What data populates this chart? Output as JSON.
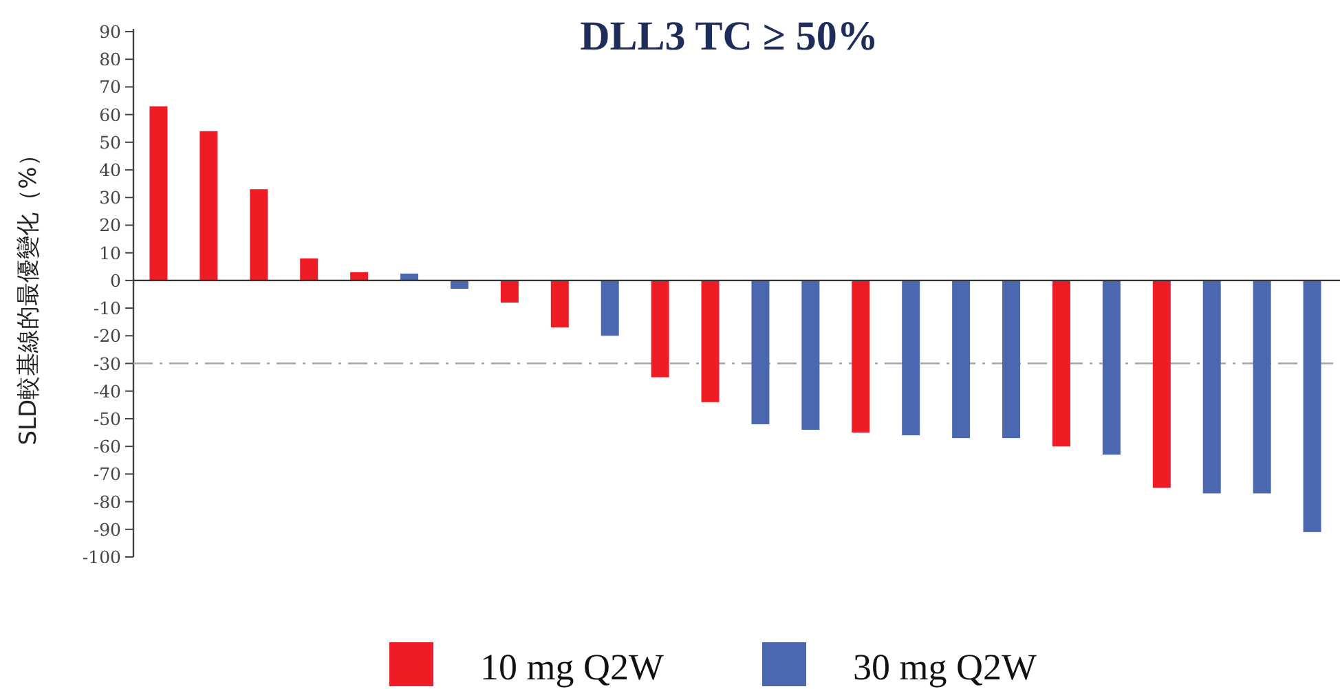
{
  "chart_data": {
    "type": "bar",
    "title": "DLL3 TC ≥ 50%",
    "ylabel": "SLD較基線的最優變化（%）",
    "categories": [
      null,
      null,
      null,
      null,
      null,
      null,
      null,
      null,
      null,
      null,
      null,
      null,
      null,
      null,
      null,
      null,
      null,
      null,
      null,
      null,
      null,
      null,
      null,
      null
    ],
    "series": [
      {
        "name": "10 mg Q2W",
        "color": "#ee1c25",
        "values": [
          63,
          54,
          33,
          8,
          3,
          null,
          null,
          -8,
          -17,
          null,
          -35,
          -44,
          null,
          null,
          -55,
          null,
          null,
          null,
          -60,
          null,
          -75,
          null,
          null,
          null
        ]
      },
      {
        "name": "30 mg Q2W",
        "color": "#4a67b0",
        "values": [
          null,
          null,
          null,
          null,
          null,
          2.5,
          -3,
          null,
          null,
          -20,
          null,
          null,
          -52,
          -54,
          null,
          -56,
          -57,
          -57,
          null,
          -63,
          null,
          -77,
          -77,
          -91
        ]
      }
    ],
    "ylim": [
      -100,
      90
    ],
    "yticks": [
      -100,
      -90,
      -80,
      -70,
      -60,
      -50,
      -40,
      -30,
      -20,
      -10,
      0,
      10,
      20,
      30,
      40,
      50,
      60,
      70,
      80,
      90
    ],
    "ref_lines": [
      {
        "axis": "y",
        "value": -30,
        "color": "#a6a6a6",
        "line_style": "dashdot"
      }
    ],
    "grid": false,
    "legend": "bottom"
  }
}
